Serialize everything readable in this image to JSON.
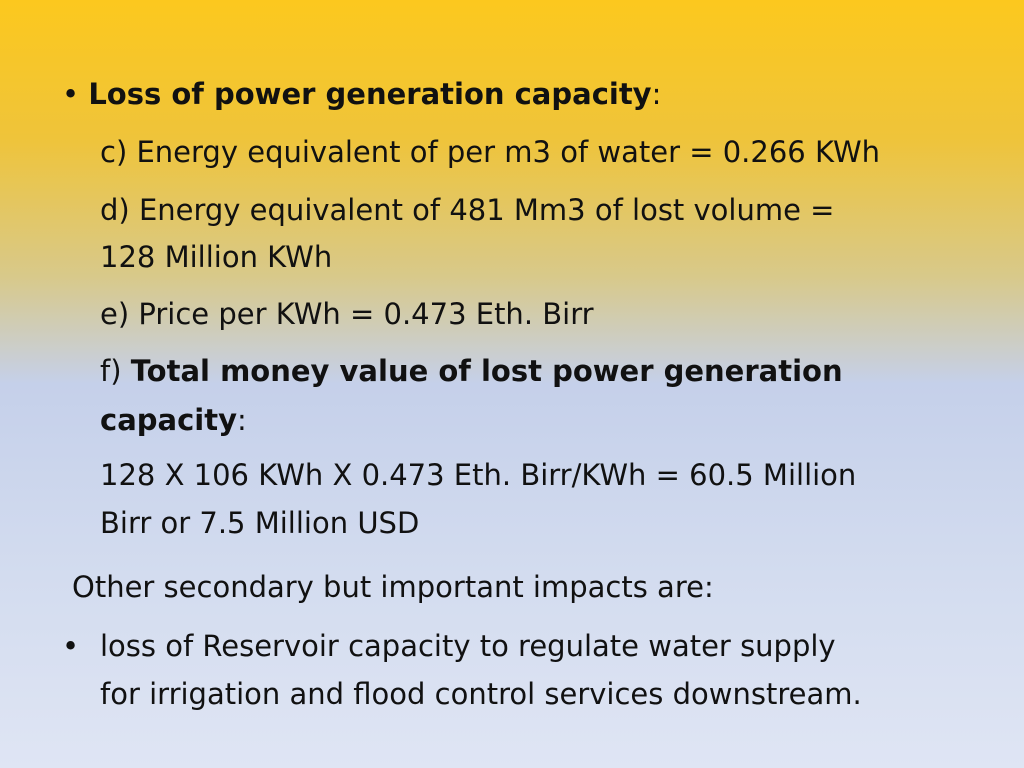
{
  "heading": {
    "bullet": "•",
    "title": "Loss of power generation capacity",
    "colon": ":"
  },
  "items": {
    "c": "c) Energy equivalent of per m3 of water = 0.266 KWh",
    "d_line1": "d) Energy equivalent of 481 Mm3 of lost volume =",
    "d_line2": "128 Million KWh",
    "e": "e) Price per KWh = 0.473 Eth. Birr",
    "f_prefix": "f) ",
    "f_bold1": "Total money value of lost power generation",
    "f_bold2": "capacity",
    "f_colon": ":",
    "calc_line1": "128 X 106 KWh X 0.473 Eth. Birr/KWh = 60.5 Million",
    "calc_line2": "Birr or 7.5 Million USD"
  },
  "secondary": {
    "intro": "Other secondary but important impacts are:",
    "bullet": "•",
    "line1": "loss of Reservoir capacity to regulate water supply",
    "line2": "for irrigation and flood control services downstream."
  }
}
